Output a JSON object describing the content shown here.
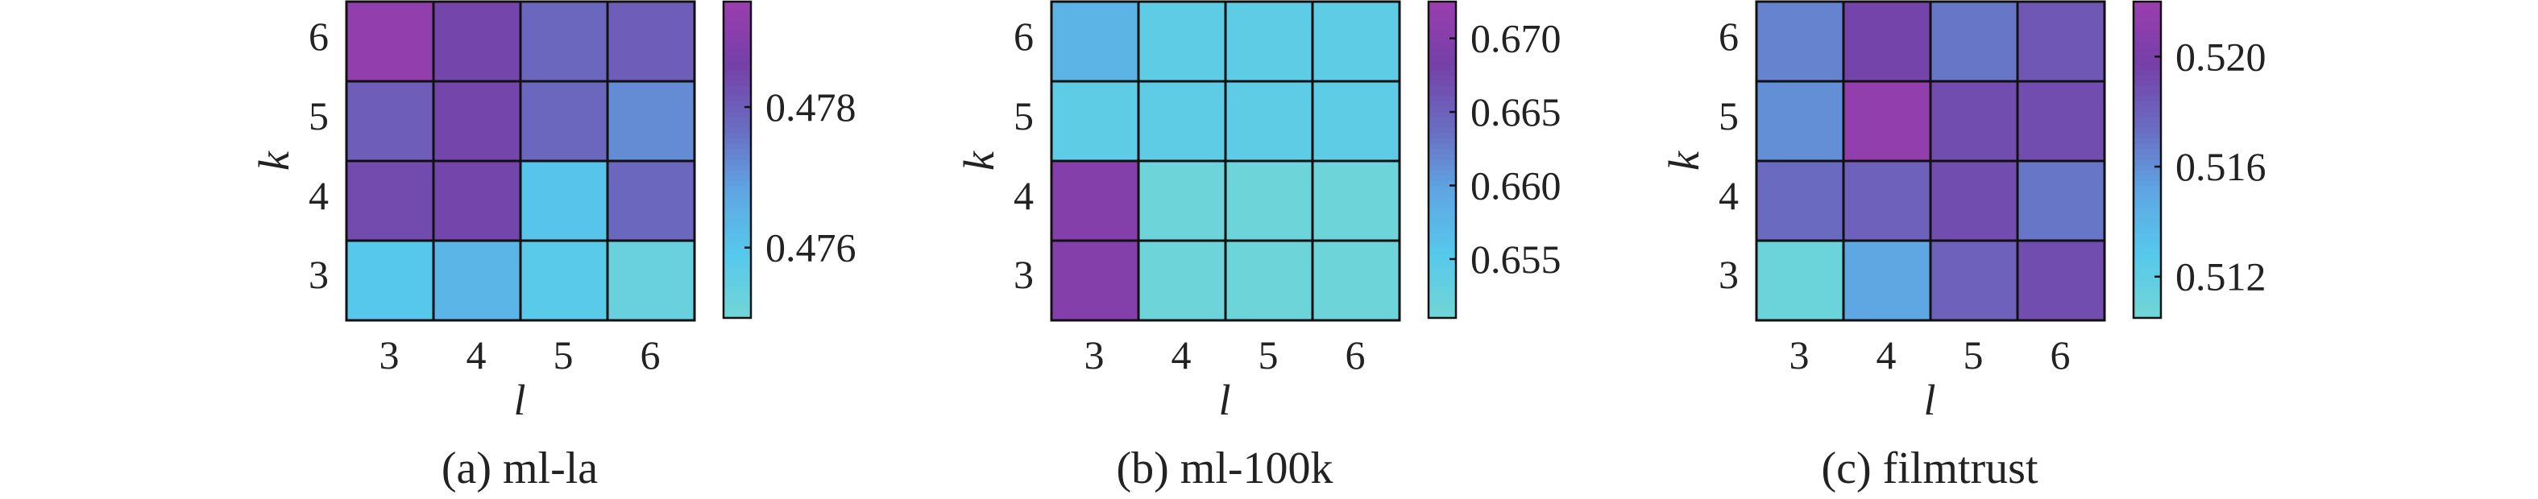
{
  "colors": {
    "colormap": [
      "#71D6D5",
      "#56C8EC",
      "#5FA6E3",
      "#6A6CC2",
      "#7540A8",
      "#9B3EAF"
    ],
    "border": "#111111",
    "text": "#222222"
  },
  "chart_data": [
    {
      "type": "heatmap",
      "caption": "(a) ml-la",
      "xlabel": "l",
      "ylabel": "k",
      "x": [
        "3",
        "4",
        "5",
        "6"
      ],
      "y": [
        "3",
        "4",
        "5",
        "6"
      ],
      "values": [
        [
          0.4759,
          0.4764,
          0.4758,
          0.4753
        ],
        [
          0.4784,
          0.4785,
          0.476,
          0.4778
        ],
        [
          0.478,
          0.4785,
          0.4778,
          0.4772
        ],
        [
          0.4793,
          0.4785,
          0.4778,
          0.478
        ]
      ],
      "colorbar": {
        "min": 0.475,
        "max": 0.4795,
        "ticks": [
          "0.476",
          "0.478"
        ],
        "tick_values": [
          0.476,
          0.478
        ]
      }
    },
    {
      "type": "heatmap",
      "caption": "(b) ml-100k",
      "xlabel": "l",
      "ylabel": "k",
      "x": [
        "3",
        "4",
        "5",
        "6"
      ],
      "y": [
        "3",
        "4",
        "5",
        "6"
      ],
      "values": [
        [
          0.67,
          0.6517,
          0.6517,
          0.6517
        ],
        [
          0.67,
          0.6517,
          0.6517,
          0.6517
        ],
        [
          0.654,
          0.654,
          0.654,
          0.654
        ],
        [
          0.658,
          0.654,
          0.654,
          0.654
        ]
      ],
      "colorbar": {
        "min": 0.651,
        "max": 0.6725,
        "ticks": [
          "0.655",
          "0.660",
          "0.665",
          "0.670"
        ],
        "tick_values": [
          0.655,
          0.66,
          0.665,
          0.67
        ]
      }
    },
    {
      "type": "heatmap",
      "caption": "(c) filmtrust",
      "xlabel": "l",
      "ylabel": "k",
      "x": [
        "3",
        "4",
        "5",
        "6"
      ],
      "y": [
        "3",
        "4",
        "5",
        "6"
      ],
      "values": [
        [
          0.511,
          0.515,
          0.518,
          0.519
        ],
        [
          0.5175,
          0.518,
          0.519,
          0.517
        ],
        [
          0.516,
          0.5215,
          0.519,
          0.519
        ],
        [
          0.5165,
          0.5195,
          0.517,
          0.5185
        ]
      ],
      "colorbar": {
        "min": 0.5105,
        "max": 0.522,
        "ticks": [
          "0.512",
          "0.516",
          "0.520"
        ],
        "tick_values": [
          0.512,
          0.516,
          0.52
        ]
      }
    }
  ]
}
